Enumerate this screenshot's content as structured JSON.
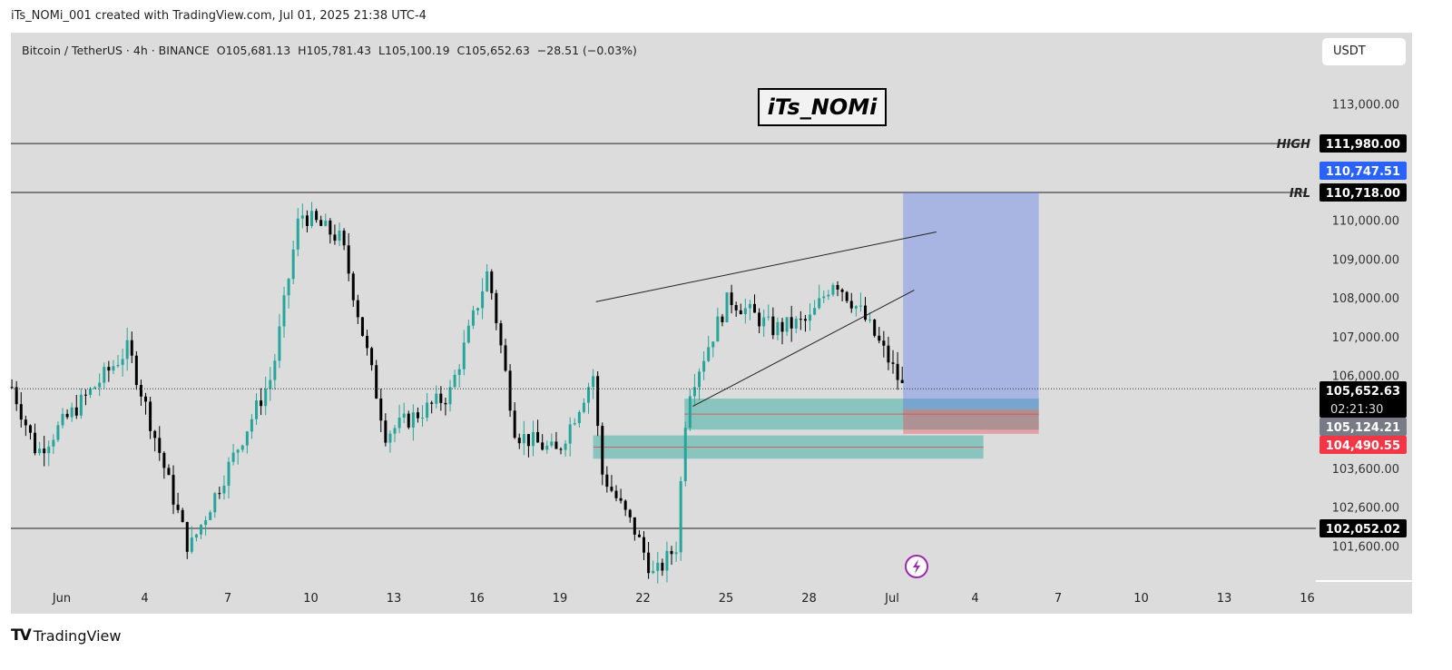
{
  "credit": "iTs_NOMi_001 created with TradingView.com, Jul 01, 2025 21:38 UTC-4",
  "legend": "Bitcoin / TetherUS · 4h · BINANCE  O105,681.13  H105,781.43  L105,100.19  C105,652.63  −28.51 (−0.03%)",
  "currency_button": "USDT",
  "watermark": "iTs_NOMi",
  "footer_brand": "TradingView",
  "colors": {
    "bg": "#dcdcdc",
    "up": "#26a69a",
    "down": "#000000",
    "blue": "#2962ff",
    "red": "#f23645"
  },
  "chart_data": {
    "type": "candlestick",
    "symbol": "BTCUSDT",
    "interval": "4h",
    "exchange": "BINANCE",
    "ohlc_last": {
      "open": 105681.13,
      "high": 105781.43,
      "low": 105100.19,
      "close": 105652.63,
      "change": -28.51,
      "change_pct": -0.03
    },
    "price_path_approx": [
      {
        "day": -0.8,
        "price": 105700
      },
      {
        "day": 0.1,
        "price": 104000
      },
      {
        "day": 3.4,
        "price": 106700
      },
      {
        "day": 5.6,
        "price": 101500
      },
      {
        "day": 8.6,
        "price": 106000
      },
      {
        "day": 9.6,
        "price": 110200
      },
      {
        "day": 11.1,
        "price": 109500
      },
      {
        "day": 12.7,
        "price": 104500
      },
      {
        "day": 15,
        "price": 105500
      },
      {
        "day": 16.4,
        "price": 108700
      },
      {
        "day": 17.4,
        "price": 104500
      },
      {
        "day": 18.9,
        "price": 104000
      },
      {
        "day": 20.2,
        "price": 106000
      },
      {
        "day": 20.5,
        "price": 103500
      },
      {
        "day": 21.7,
        "price": 102000
      },
      {
        "day": 22.4,
        "price": 100800
      },
      {
        "day": 23.2,
        "price": 101600
      },
      {
        "day": 23.6,
        "price": 105500
      },
      {
        "day": 25.1,
        "price": 108000
      },
      {
        "day": 26.7,
        "price": 107200
      },
      {
        "day": 28,
        "price": 107400
      },
      {
        "day": 28.9,
        "price": 108500
      },
      {
        "day": 29.9,
        "price": 107600
      },
      {
        "day": 30.8,
        "price": 106500
      },
      {
        "day": 31.4,
        "price": 105650
      }
    ],
    "y_ticks": [
      113000,
      110000,
      109000,
      108000,
      107000,
      106000,
      103600,
      102600,
      101600
    ],
    "x_ticks": [
      {
        "day": 1,
        "label": "Jun"
      },
      {
        "day": 4,
        "label": "4"
      },
      {
        "day": 7,
        "label": "7"
      },
      {
        "day": 10,
        "label": "10"
      },
      {
        "day": 13,
        "label": "13"
      },
      {
        "day": 16,
        "label": "16"
      },
      {
        "day": 19,
        "label": "19"
      },
      {
        "day": 22,
        "label": "22"
      },
      {
        "day": 25,
        "label": "25"
      },
      {
        "day": 28,
        "label": "28"
      },
      {
        "day": 31,
        "label": "Jul"
      },
      {
        "day": 34,
        "label": "4"
      },
      {
        "day": 37,
        "label": "7"
      },
      {
        "day": 40,
        "label": "10"
      },
      {
        "day": 43,
        "label": "13"
      },
      {
        "day": 46,
        "label": "16"
      }
    ],
    "levels": [
      {
        "name": "HIGH",
        "price": 111980,
        "label": "111,980.00"
      },
      {
        "name": "IRL",
        "price": 110718,
        "label": "110,718.00"
      },
      {
        "name": "",
        "price": 102052.02,
        "label": "102,052.02"
      }
    ],
    "price_tags": [
      {
        "price": 110747.51,
        "label": "110,747.51",
        "color": "#2962ff"
      },
      {
        "price": 105652.63,
        "label": "105,652.63",
        "sub": "02:21:30",
        "color": "#000000"
      },
      {
        "price": 105124.21,
        "label": "105,124.21",
        "color": "#787b86"
      },
      {
        "price": 104490.55,
        "label": "104,490.55",
        "color": "#f23645"
      }
    ],
    "zones": [
      {
        "from_day": 23.5,
        "to_day": 36.3,
        "top": 105400,
        "bottom": 104600,
        "mid": 105000
      },
      {
        "from_day": 20.2,
        "to_day": 34.3,
        "top": 104450,
        "bottom": 103850,
        "mid": 104150
      }
    ],
    "long_position": {
      "from_day": 31.4,
      "to_day": 36.3,
      "entry": 105124.21,
      "target": 110718,
      "stop": 104490.55
    },
    "trendlines": [
      {
        "d1": 20.3,
        "p1": 107900,
        "d2": 32.6,
        "p2": 109700
      },
      {
        "d1": 23.8,
        "p1": 105200,
        "d2": 31.8,
        "p2": 108200
      }
    ]
  }
}
